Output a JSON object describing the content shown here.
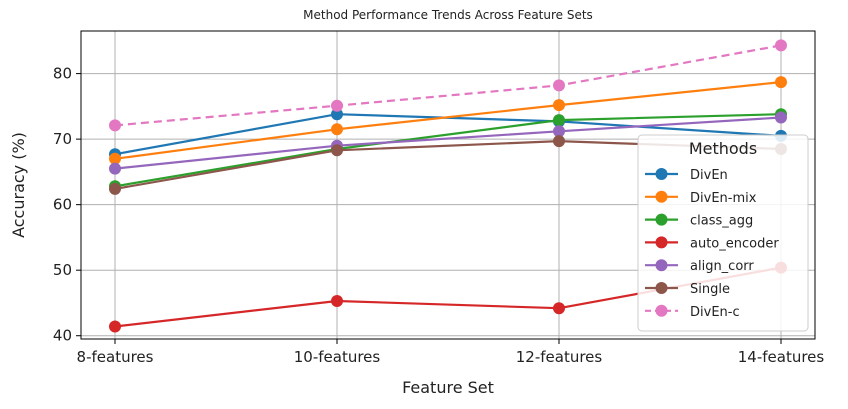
{
  "chart_data": {
    "type": "line",
    "title": "Method Performance Trends Across Feature Sets",
    "xlabel": "Feature Set",
    "ylabel": "Accuracy (%)",
    "categories": [
      "8-features",
      "10-features",
      "12-features",
      "14-features"
    ],
    "ylim": [
      39.5,
      86.5
    ],
    "yticks": [
      40,
      50,
      60,
      70,
      80
    ],
    "grid": true,
    "legend": {
      "title": "Methods",
      "placement": "right"
    },
    "series": [
      {
        "name": "DivEn",
        "color": "#1f77b4",
        "dashed": false,
        "values": [
          67.7,
          73.8,
          72.7,
          70.5
        ]
      },
      {
        "name": "DivEn-mix",
        "color": "#ff7f0e",
        "dashed": false,
        "values": [
          67.0,
          71.5,
          75.2,
          78.7
        ]
      },
      {
        "name": "class_agg",
        "color": "#2ca02c",
        "dashed": false,
        "values": [
          62.8,
          68.5,
          72.9,
          73.8
        ]
      },
      {
        "name": "auto_encoder",
        "color": "#d62728",
        "dashed": false,
        "values": [
          41.4,
          45.3,
          44.2,
          50.4
        ]
      },
      {
        "name": "align_corr",
        "color": "#9467bd",
        "dashed": false,
        "values": [
          65.5,
          69.0,
          71.2,
          73.3
        ]
      },
      {
        "name": "Single",
        "color": "#8c564b",
        "dashed": false,
        "values": [
          62.4,
          68.3,
          69.7,
          68.5
        ]
      },
      {
        "name": "DivEn-c",
        "color": "#e377c2",
        "dashed": true,
        "values": [
          72.1,
          75.1,
          78.2,
          84.3
        ]
      }
    ]
  }
}
